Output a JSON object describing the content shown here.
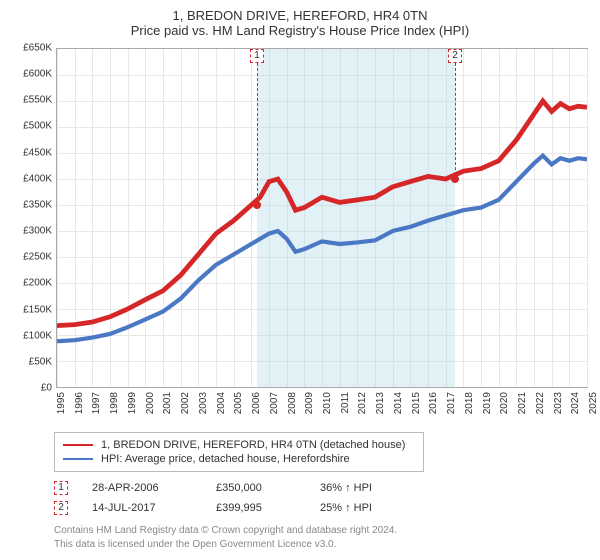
{
  "titles": {
    "line1": "1, BREDON DRIVE, HEREFORD, HR4 0TN",
    "line2": "Price paid vs. HM Land Registry's House Price Index (HPI)"
  },
  "chart": {
    "type": "line",
    "background_color": "#ffffff",
    "grid_color": "#e8e8e8",
    "axis_color": "#aaaaaa",
    "band_color": "rgba(173,216,230,0.35)",
    "ylim": [
      0,
      650000
    ],
    "ytick_step": 50000,
    "yticks": [
      "£0",
      "£50K",
      "£100K",
      "£150K",
      "£200K",
      "£250K",
      "£300K",
      "£350K",
      "£400K",
      "£450K",
      "£500K",
      "£550K",
      "£600K",
      "£650K"
    ],
    "xlim": [
      1995,
      2025
    ],
    "xticks": [
      1995,
      1996,
      1997,
      1998,
      1999,
      2000,
      2001,
      2002,
      2003,
      2004,
      2005,
      2006,
      2007,
      2008,
      2009,
      2010,
      2011,
      2012,
      2013,
      2014,
      2015,
      2016,
      2017,
      2018,
      2019,
      2020,
      2021,
      2022,
      2023,
      2024,
      2025
    ],
    "label_fontsize": 10,
    "series": [
      {
        "name": "property",
        "label": "1, BREDON DRIVE, HEREFORD, HR4 0TN (detached house)",
        "color": "#d62728",
        "line_width": 1.6,
        "data": [
          [
            1995,
            118000
          ],
          [
            1996,
            120000
          ],
          [
            1997,
            125000
          ],
          [
            1998,
            135000
          ],
          [
            1999,
            150000
          ],
          [
            2000,
            168000
          ],
          [
            2001,
            185000
          ],
          [
            2002,
            215000
          ],
          [
            2003,
            255000
          ],
          [
            2004,
            295000
          ],
          [
            2005,
            320000
          ],
          [
            2006,
            350000
          ],
          [
            2006.5,
            365000
          ],
          [
            2007,
            395000
          ],
          [
            2007.5,
            400000
          ],
          [
            2008,
            375000
          ],
          [
            2008.5,
            340000
          ],
          [
            2009,
            345000
          ],
          [
            2010,
            365000
          ],
          [
            2011,
            355000
          ],
          [
            2012,
            360000
          ],
          [
            2013,
            365000
          ],
          [
            2014,
            385000
          ],
          [
            2015,
            395000
          ],
          [
            2016,
            405000
          ],
          [
            2017,
            400000
          ],
          [
            2018,
            415000
          ],
          [
            2019,
            420000
          ],
          [
            2020,
            435000
          ],
          [
            2021,
            475000
          ],
          [
            2022,
            525000
          ],
          [
            2022.5,
            550000
          ],
          [
            2023,
            530000
          ],
          [
            2023.5,
            545000
          ],
          [
            2024,
            535000
          ],
          [
            2024.5,
            540000
          ],
          [
            2025,
            538000
          ]
        ]
      },
      {
        "name": "hpi",
        "label": "HPI: Average price, detached house, Herefordshire",
        "color": "#4a78c4",
        "line_width": 1.4,
        "data": [
          [
            1995,
            88000
          ],
          [
            1996,
            90000
          ],
          [
            1997,
            95000
          ],
          [
            1998,
            102000
          ],
          [
            1999,
            115000
          ],
          [
            2000,
            130000
          ],
          [
            2001,
            145000
          ],
          [
            2002,
            170000
          ],
          [
            2003,
            205000
          ],
          [
            2004,
            235000
          ],
          [
            2005,
            255000
          ],
          [
            2006,
            275000
          ],
          [
            2007,
            295000
          ],
          [
            2007.5,
            300000
          ],
          [
            2008,
            285000
          ],
          [
            2008.5,
            260000
          ],
          [
            2009,
            265000
          ],
          [
            2010,
            280000
          ],
          [
            2011,
            275000
          ],
          [
            2012,
            278000
          ],
          [
            2013,
            282000
          ],
          [
            2014,
            300000
          ],
          [
            2015,
            308000
          ],
          [
            2016,
            320000
          ],
          [
            2017,
            330000
          ],
          [
            2018,
            340000
          ],
          [
            2019,
            345000
          ],
          [
            2020,
            360000
          ],
          [
            2021,
            395000
          ],
          [
            2022,
            430000
          ],
          [
            2022.5,
            445000
          ],
          [
            2023,
            428000
          ],
          [
            2023.5,
            440000
          ],
          [
            2024,
            435000
          ],
          [
            2024.5,
            440000
          ],
          [
            2025,
            438000
          ]
        ]
      }
    ],
    "sale_markers": [
      {
        "num": "1",
        "x": 2006.32,
        "y": 350000,
        "color": "#d62728"
      },
      {
        "num": "2",
        "x": 2017.53,
        "y": 399995,
        "color": "#d62728"
      }
    ]
  },
  "legend": {
    "items": [
      {
        "color": "#d62728",
        "text": "1, BREDON DRIVE, HEREFORD, HR4 0TN (detached house)"
      },
      {
        "color": "#4a78c4",
        "text": "HPI: Average price, detached house, Herefordshire"
      }
    ]
  },
  "sales": [
    {
      "num": "1",
      "color": "#d62728",
      "date": "28-APR-2006",
      "price": "£350,000",
      "pct": "36% ↑ HPI"
    },
    {
      "num": "2",
      "color": "#d62728",
      "date": "14-JUL-2017",
      "price": "£399,995",
      "pct": "25% ↑ HPI"
    }
  ],
  "footer": {
    "line1": "Contains HM Land Registry data © Crown copyright and database right 2024.",
    "line2": "This data is licensed under the Open Government Licence v3.0."
  }
}
